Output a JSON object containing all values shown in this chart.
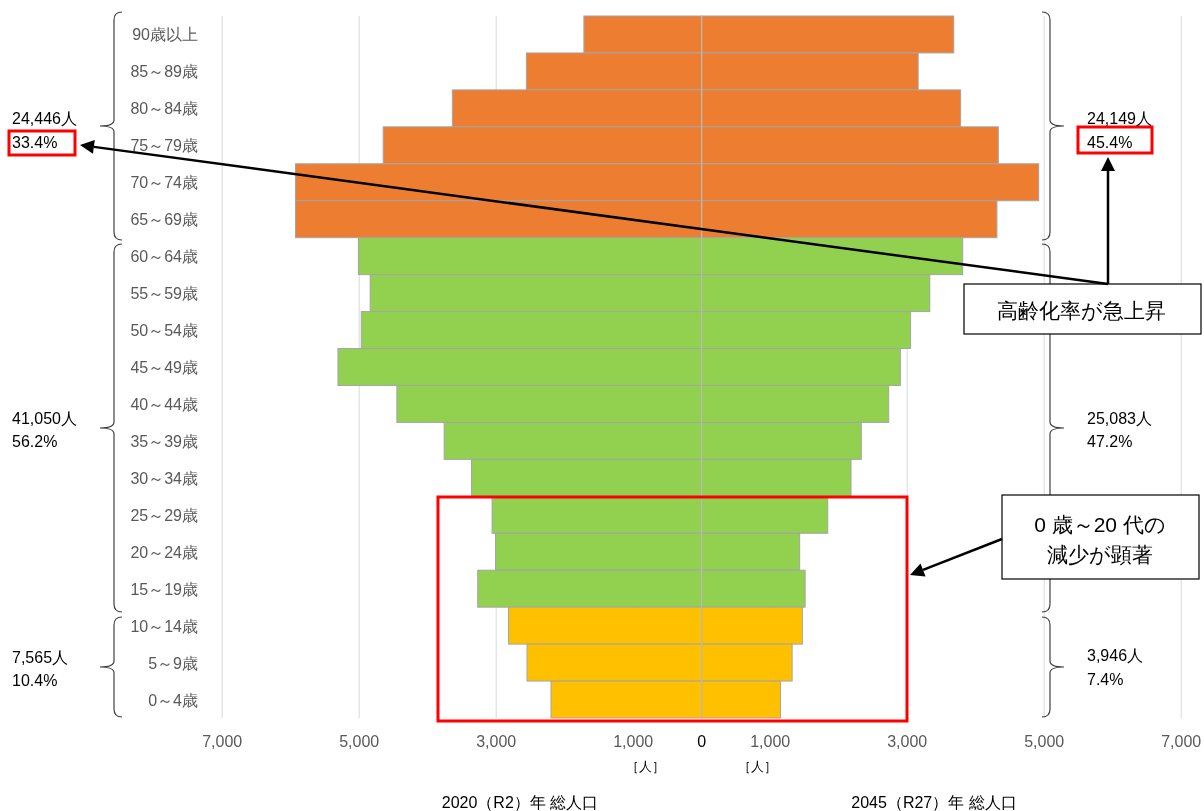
{
  "chart_data": {
    "type": "bar",
    "orientation": "horizontal",
    "stacked": true,
    "categories": [
      "90歳以上",
      "85～89歳",
      "80～84歳",
      "75～79歳",
      "70～74歳",
      "65～69歳",
      "60～64歳",
      "55～59歳",
      "50～54歳",
      "45～49歳",
      "40～44歳",
      "35～39歳",
      "30～34歳",
      "25～29歳",
      "20～24歳",
      "15～19歳",
      "10～14歳",
      "5～9歳",
      "0～4歳"
    ],
    "series": [
      {
        "values": [
          -1720,
          -2560,
          -3640,
          -4650,
          -5930,
          -5930,
          -5010,
          -4840,
          -4970,
          -5310,
          -4450,
          -3760,
          -3360,
          -3060,
          -3010,
          -3270,
          -2820,
          -2550,
          -2200
        ],
        "colors": [
          "#ed7d31",
          "#ed7d31",
          "#ed7d31",
          "#ed7d31",
          "#ed7d31",
          "#ed7d31",
          "#92d050",
          "#92d050",
          "#92d050",
          "#92d050",
          "#92d050",
          "#92d050",
          "#92d050",
          "#92d050",
          "#92d050",
          "#92d050",
          "#ffc000",
          "#ffc000",
          "#ffc000"
        ]
      },
      {
        "values": [
          3680,
          3160,
          3780,
          4330,
          4920,
          4310,
          3810,
          3330,
          3050,
          2900,
          2730,
          2330,
          2180,
          1840,
          1430,
          1510,
          1470,
          1320,
          1150
        ],
        "colors": [
          "#ed7d31",
          "#ed7d31",
          "#ed7d31",
          "#ed7d31",
          "#ed7d31",
          "#ed7d31",
          "#92d050",
          "#92d050",
          "#92d050",
          "#92d050",
          "#92d050",
          "#92d050",
          "#92d050",
          "#92d050",
          "#92d050",
          "#92d050",
          "#ffc000",
          "#ffc000",
          "#ffc000"
        ]
      }
    ],
    "xlim": [
      -7000,
      7000
    ],
    "xticks": [
      {
        "value": -7000,
        "label": "7,000"
      },
      {
        "value": -5000,
        "label": "5,000"
      },
      {
        "value": -3000,
        "label": "3,000"
      },
      {
        "value": -1000,
        "label": "1,000"
      },
      0,
      {
        "value": 1000,
        "label": "1,000"
      },
      {
        "value": 3000,
        "label": "3,000"
      },
      {
        "value": 5000,
        "label": "5,000"
      },
      {
        "value": 7000,
        "label": "7,000"
      }
    ],
    "grid": "x",
    "annotations": [
      "24,446人",
      "33.4%",
      "41,050人",
      "56.2%",
      "7,565人",
      "10.4%",
      "24,149人",
      "45.4%",
      "25,083人",
      "47.2%",
      "3,946人",
      "7.4%",
      "高齢化率が急上昇",
      "0 歳～20 代の",
      "減少が顕著",
      "［人］",
      "［人］",
      "2020（R2）年 総人口",
      "2045（R27）年 総人口"
    ]
  }
}
